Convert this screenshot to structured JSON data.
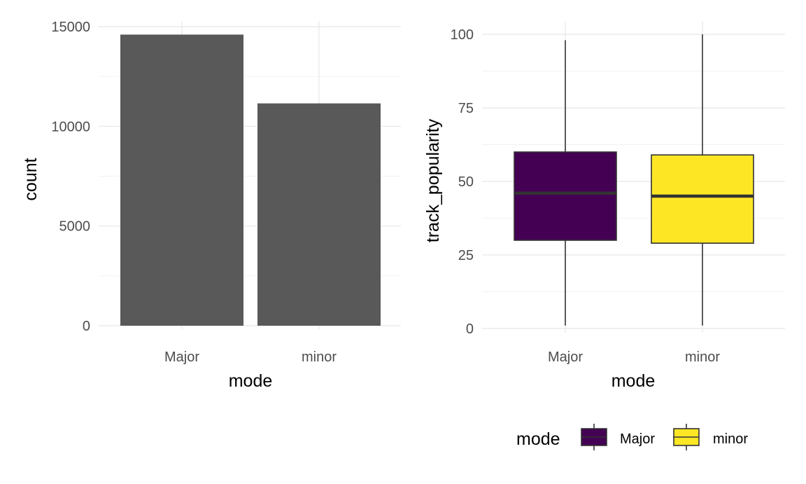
{
  "chart_data": [
    {
      "type": "bar",
      "xlabel": "mode",
      "ylabel": "count",
      "categories": [
        "Major",
        "minor"
      ],
      "values": [
        14600,
        11150
      ],
      "ylim": [
        0,
        15000
      ],
      "yticks": [
        0,
        5000,
        10000,
        15000
      ],
      "grid": true,
      "bar_color": "#595959"
    },
    {
      "type": "box",
      "xlabel": "mode",
      "ylabel": "track_popularity",
      "categories": [
        "Major",
        "minor"
      ],
      "boxes": [
        {
          "name": "Major",
          "min": 1,
          "q1": 30,
          "median": 46,
          "q3": 60,
          "max": 98,
          "color": "#440154"
        },
        {
          "name": "minor",
          "min": 1,
          "q1": 29,
          "median": 45,
          "q3": 59,
          "max": 100,
          "color": "#FDE725"
        }
      ],
      "ylim": [
        0,
        100
      ],
      "yticks": [
        0,
        25,
        50,
        75,
        100
      ],
      "grid": true,
      "legend": {
        "title": "mode",
        "placement": "bottom",
        "entries": [
          {
            "label": "Major",
            "color": "#440154"
          },
          {
            "label": "minor",
            "color": "#FDE725"
          }
        ]
      }
    }
  ]
}
